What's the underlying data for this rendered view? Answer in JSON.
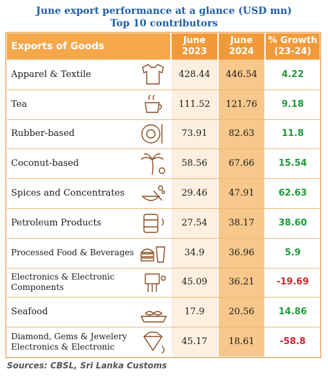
{
  "title_line1": "June export performance at a glance (USD mn)",
  "title_line2": "Top 10 contributors",
  "header": {
    "goods": "Exports of Goods",
    "col1": "June 2023",
    "col2": "June 2024",
    "col3": "% Growth (23-24)"
  },
  "source": "Sources: CBSL, Sri Lanka Customs",
  "colors": {
    "header": "#f7a84a",
    "positive": "#1e9a3c",
    "negative": "#d4202a",
    "title": "#1f5fa8"
  },
  "chart_data": {
    "type": "table",
    "title": "June export performance at a glance (USD mn)",
    "subtitle": "Top 10 contributors",
    "columns": [
      "Exports of Goods",
      "June 2023",
      "June 2024",
      "% Growth (23-24)"
    ],
    "rows": [
      {
        "name": "Apparel & Textile",
        "v2023": "428.44",
        "v2024": "446.54",
        "growth": "4.22",
        "icon": "shirt-icon"
      },
      {
        "name": "Tea",
        "v2023": "111.52",
        "v2024": "121.76",
        "growth": "9.18",
        "icon": "tea-cup-icon"
      },
      {
        "name": "Rubber-based",
        "v2023": "73.91",
        "v2024": "82.63",
        "growth": "11.8",
        "icon": "tyre-icon"
      },
      {
        "name": "Coconut-based",
        "v2023": "58.56",
        "v2024": "67.66",
        "growth": "15.54",
        "icon": "coconut-tree-icon"
      },
      {
        "name": "Spices and Concentrates",
        "v2023": "29.46",
        "v2024": "47.91",
        "growth": "62.63",
        "icon": "spices-icon"
      },
      {
        "name": "Petroleum Products",
        "v2023": "27.54",
        "v2024": "38.17",
        "growth": "38.60",
        "icon": "oil-barrel-icon"
      },
      {
        "name": "Processed Food & Beverages",
        "v2023": "34.9",
        "v2024": "36.96",
        "growth": "5.9",
        "icon": "burger-drink-icon"
      },
      {
        "name": "Electronics & Electronic Components",
        "v2023": "45.09",
        "v2024": "36.21",
        "growth": "-19.69",
        "icon": "circuit-icon"
      },
      {
        "name": "Seafood",
        "v2023": "17.9",
        "v2024": "20.56",
        "growth": "14.86",
        "icon": "fish-icon"
      },
      {
        "name": "Diamond, Gems & Jewelery Electronics & Electronic",
        "v2023": "45.17",
        "v2024": "18.61",
        "growth": "-58.8",
        "icon": "diamond-icon"
      }
    ]
  }
}
